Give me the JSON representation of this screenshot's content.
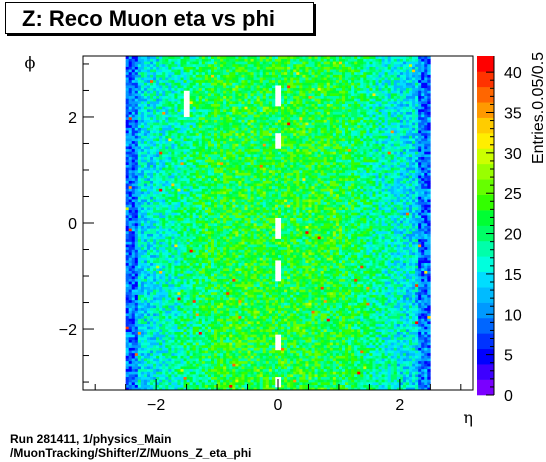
{
  "title": "Z: Reco Muon eta vs phi",
  "footer": {
    "line1": "Run 281411, 1/physics_Main",
    "line2": "/MuonTracking/Shifter/Z/Muons_Z_eta_phi"
  },
  "colors": {
    "palette": [
      "#7a00ff",
      "#3d00ff",
      "#0000ff",
      "#0033ff",
      "#0066ff",
      "#0099ff",
      "#00bbff",
      "#00ddff",
      "#00ffdd",
      "#00ffaa",
      "#00ff66",
      "#00ff33",
      "#33ff00",
      "#66ff00",
      "#99ff00",
      "#ccff00",
      "#ffee00",
      "#ffcc00",
      "#ff9900",
      "#ff6600",
      "#ff3300",
      "#ff0000"
    ],
    "axis": "#000000"
  },
  "chart_data": {
    "type": "heatmap",
    "title": "Z: Reco Muon eta vs phi",
    "xlabel": "η",
    "ylabel": "ϕ",
    "zlabel": "Entries.0.05/0.5",
    "xlim": [
      -3.2,
      3.2
    ],
    "ylim": [
      -3.15,
      3.15
    ],
    "zlim": [
      0,
      42
    ],
    "data_x_range": [
      -2.5,
      2.5
    ],
    "bin_width_x": 0.05,
    "bin_width_y": 0.05,
    "x_ticks": [
      -2,
      0,
      2
    ],
    "x_tick_labels": [
      "−2",
      "0",
      "2"
    ],
    "y_ticks": [
      -2,
      0,
      2
    ],
    "y_tick_labels": [
      "−2",
      "0",
      "2"
    ],
    "z_ticks": [
      0,
      5,
      10,
      15,
      20,
      25,
      30,
      35,
      40
    ],
    "z_tick_labels": [
      "0",
      "5",
      "10",
      "15",
      "20",
      "25",
      "30",
      "35",
      "40"
    ],
    "typical_density": {
      "central_eta_abs_below_1": 22,
      "edge_eta_abs_above_2": 12,
      "max": 41
    },
    "empty_regions_eta": [
      -0.05,
      0.0
    ],
    "empty_regions": [
      {
        "eta": [
          -1.55,
          -1.45
        ],
        "phi": [
          2.0,
          2.5
        ]
      },
      {
        "eta": [
          -0.05,
          0.05
        ],
        "phi": [
          2.2,
          2.6
        ]
      },
      {
        "eta": [
          -0.05,
          0.05
        ],
        "phi": [
          1.4,
          1.7
        ]
      },
      {
        "eta": [
          -0.05,
          0.05
        ],
        "phi": [
          -0.3,
          0.1
        ]
      },
      {
        "eta": [
          -0.05,
          0.05
        ],
        "phi": [
          -1.1,
          -0.7
        ]
      },
      {
        "eta": [
          -0.05,
          0.05
        ],
        "phi": [
          -2.4,
          -2.1
        ]
      },
      {
        "eta": [
          -0.05,
          0.05
        ],
        "phi": [
          -3.1,
          -2.9
        ]
      }
    ]
  }
}
